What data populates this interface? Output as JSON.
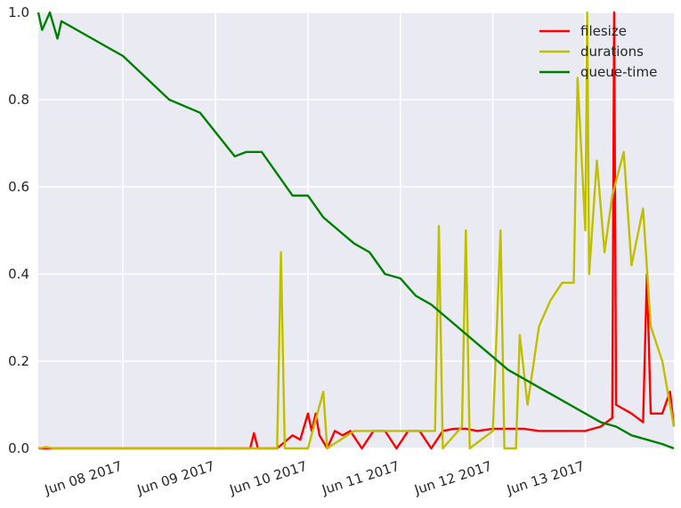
{
  "chart_data": {
    "type": "line",
    "title": "",
    "xlabel": "",
    "ylabel": "",
    "grid": true,
    "legend_position": "top-right",
    "x_range": [
      "2017-06-07T02:00",
      "2017-06-13T23:00"
    ],
    "ylim": [
      0.0,
      1.0
    ],
    "y_ticks": [
      0.0,
      0.2,
      0.4,
      0.6,
      0.8,
      1.0
    ],
    "y_tick_labels": [
      "0.0",
      "0.2",
      "0.4",
      "0.6",
      "0.8",
      "1.0"
    ],
    "x_ticks": [
      "2017-06-08",
      "2017-06-09",
      "2017-06-10",
      "2017-06-11",
      "2017-06-12",
      "2017-06-13"
    ],
    "x_tick_labels": [
      "Jun 08 2017",
      "Jun 09 2017",
      "Jun 10 2017",
      "Jun 11 2017",
      "Jun 12 2017",
      "Jun 13 2017"
    ],
    "series": [
      {
        "name": "filesize",
        "color": "#ff0000",
        "points": [
          [
            "2017-06-07T02:00",
            0.0
          ],
          [
            "2017-06-08T12:00",
            0.0
          ],
          [
            "2017-06-09T00:00",
            0.0
          ],
          [
            "2017-06-09T09:00",
            0.0
          ],
          [
            "2017-06-09T10:00",
            0.035
          ],
          [
            "2017-06-09T11:00",
            0.0
          ],
          [
            "2017-06-09T16:00",
            0.0
          ],
          [
            "2017-06-09T20:00",
            0.03
          ],
          [
            "2017-06-09T22:00",
            0.02
          ],
          [
            "2017-06-10T00:00",
            0.08
          ],
          [
            "2017-06-10T01:00",
            0.04
          ],
          [
            "2017-06-10T02:00",
            0.08
          ],
          [
            "2017-06-10T03:00",
            0.03
          ],
          [
            "2017-06-10T05:00",
            0.0
          ],
          [
            "2017-06-10T07:00",
            0.04
          ],
          [
            "2017-06-10T09:00",
            0.03
          ],
          [
            "2017-06-10T11:00",
            0.04
          ],
          [
            "2017-06-10T14:00",
            0.0
          ],
          [
            "2017-06-10T17:00",
            0.04
          ],
          [
            "2017-06-10T20:00",
            0.04
          ],
          [
            "2017-06-10T23:00",
            0.0
          ],
          [
            "2017-06-11T02:00",
            0.04
          ],
          [
            "2017-06-11T05:00",
            0.04
          ],
          [
            "2017-06-11T08:00",
            0.0
          ],
          [
            "2017-06-11T11:00",
            0.04
          ],
          [
            "2017-06-11T14:00",
            0.045
          ],
          [
            "2017-06-11T17:00",
            0.045
          ],
          [
            "2017-06-11T20:00",
            0.04
          ],
          [
            "2017-06-12T00:00",
            0.045
          ],
          [
            "2017-06-12T04:00",
            0.045
          ],
          [
            "2017-06-12T08:00",
            0.045
          ],
          [
            "2017-06-12T12:00",
            0.04
          ],
          [
            "2017-06-12T16:00",
            0.04
          ],
          [
            "2017-06-12T20:00",
            0.04
          ],
          [
            "2017-06-13T00:00",
            0.04
          ],
          [
            "2017-06-13T04:00",
            0.05
          ],
          [
            "2017-06-13T07:00",
            0.07
          ],
          [
            "2017-06-13T07:30",
            1.0
          ],
          [
            "2017-06-13T08:00",
            0.1
          ],
          [
            "2017-06-13T12:00",
            0.08
          ],
          [
            "2017-06-13T15:00",
            0.06
          ],
          [
            "2017-06-13T16:00",
            0.4
          ],
          [
            "2017-06-13T17:00",
            0.08
          ],
          [
            "2017-06-13T20:00",
            0.08
          ],
          [
            "2017-06-13T22:00",
            0.13
          ],
          [
            "2017-06-13T23:00",
            0.05
          ]
        ]
      },
      {
        "name": "durations",
        "color": "#bfbf00",
        "points": [
          [
            "2017-06-07T02:00",
            0.0
          ],
          [
            "2017-06-07T04:00",
            0.003
          ],
          [
            "2017-06-07T06:00",
            0.0
          ],
          [
            "2017-06-09T08:00",
            0.0
          ],
          [
            "2017-06-09T16:00",
            0.0
          ],
          [
            "2017-06-09T17:00",
            0.45
          ],
          [
            "2017-06-09T18:00",
            0.0
          ],
          [
            "2017-06-10T00:00",
            0.0
          ],
          [
            "2017-06-10T04:00",
            0.13
          ],
          [
            "2017-06-10T05:00",
            0.0
          ],
          [
            "2017-06-10T12:00",
            0.04
          ],
          [
            "2017-06-10T16:00",
            0.04
          ],
          [
            "2017-06-11T02:00",
            0.04
          ],
          [
            "2017-06-11T06:00",
            0.04
          ],
          [
            "2017-06-11T09:00",
            0.04
          ],
          [
            "2017-06-11T10:00",
            0.51
          ],
          [
            "2017-06-11T11:00",
            0.0
          ],
          [
            "2017-06-11T16:00",
            0.05
          ],
          [
            "2017-06-11T17:00",
            0.5
          ],
          [
            "2017-06-11T18:00",
            0.0
          ],
          [
            "2017-06-12T00:00",
            0.04
          ],
          [
            "2017-06-12T02:00",
            0.5
          ],
          [
            "2017-06-12T03:00",
            0.0
          ],
          [
            "2017-06-12T06:00",
            0.0
          ],
          [
            "2017-06-12T07:00",
            0.26
          ],
          [
            "2017-06-12T09:00",
            0.1
          ],
          [
            "2017-06-12T12:00",
            0.28
          ],
          [
            "2017-06-12T15:00",
            0.34
          ],
          [
            "2017-06-12T18:00",
            0.38
          ],
          [
            "2017-06-12T21:00",
            0.38
          ],
          [
            "2017-06-12T22:00",
            0.85
          ],
          [
            "2017-06-13T00:00",
            0.5
          ],
          [
            "2017-06-13T00:30",
            1.0
          ],
          [
            "2017-06-13T01:00",
            0.4
          ],
          [
            "2017-06-13T03:00",
            0.66
          ],
          [
            "2017-06-13T05:00",
            0.45
          ],
          [
            "2017-06-13T07:00",
            0.58
          ],
          [
            "2017-06-13T10:00",
            0.68
          ],
          [
            "2017-06-13T12:00",
            0.42
          ],
          [
            "2017-06-13T15:00",
            0.55
          ],
          [
            "2017-06-13T17:00",
            0.28
          ],
          [
            "2017-06-13T20:00",
            0.2
          ],
          [
            "2017-06-13T23:00",
            0.05
          ]
        ]
      },
      {
        "name": "queue-time",
        "color": "#008000",
        "points": [
          [
            "2017-06-07T02:00",
            1.0
          ],
          [
            "2017-06-07T03:00",
            0.96
          ],
          [
            "2017-06-07T05:00",
            1.0
          ],
          [
            "2017-06-07T07:00",
            0.94
          ],
          [
            "2017-06-07T08:00",
            0.98
          ],
          [
            "2017-06-07T14:00",
            0.95
          ],
          [
            "2017-06-08T00:00",
            0.9
          ],
          [
            "2017-06-08T12:00",
            0.8
          ],
          [
            "2017-06-08T20:00",
            0.77
          ],
          [
            "2017-06-09T05:00",
            0.67
          ],
          [
            "2017-06-09T08:00",
            0.68
          ],
          [
            "2017-06-09T12:00",
            0.68
          ],
          [
            "2017-06-09T16:00",
            0.63
          ],
          [
            "2017-06-09T20:00",
            0.58
          ],
          [
            "2017-06-10T00:00",
            0.58
          ],
          [
            "2017-06-10T04:00",
            0.53
          ],
          [
            "2017-06-10T08:00",
            0.5
          ],
          [
            "2017-06-10T12:00",
            0.47
          ],
          [
            "2017-06-10T16:00",
            0.45
          ],
          [
            "2017-06-10T20:00",
            0.4
          ],
          [
            "2017-06-11T00:00",
            0.39
          ],
          [
            "2017-06-11T04:00",
            0.35
          ],
          [
            "2017-06-11T08:00",
            0.33
          ],
          [
            "2017-06-11T12:00",
            0.3
          ],
          [
            "2017-06-11T16:00",
            0.27
          ],
          [
            "2017-06-11T20:00",
            0.24
          ],
          [
            "2017-06-12T00:00",
            0.21
          ],
          [
            "2017-06-12T04:00",
            0.18
          ],
          [
            "2017-06-12T08:00",
            0.16
          ],
          [
            "2017-06-12T12:00",
            0.14
          ],
          [
            "2017-06-12T16:00",
            0.12
          ],
          [
            "2017-06-12T20:00",
            0.1
          ],
          [
            "2017-06-13T00:00",
            0.08
          ],
          [
            "2017-06-13T04:00",
            0.06
          ],
          [
            "2017-06-13T08:00",
            0.05
          ],
          [
            "2017-06-13T12:00",
            0.03
          ],
          [
            "2017-06-13T16:00",
            0.02
          ],
          [
            "2017-06-13T20:00",
            0.01
          ],
          [
            "2017-06-13T23:00",
            0.0
          ]
        ]
      }
    ]
  }
}
